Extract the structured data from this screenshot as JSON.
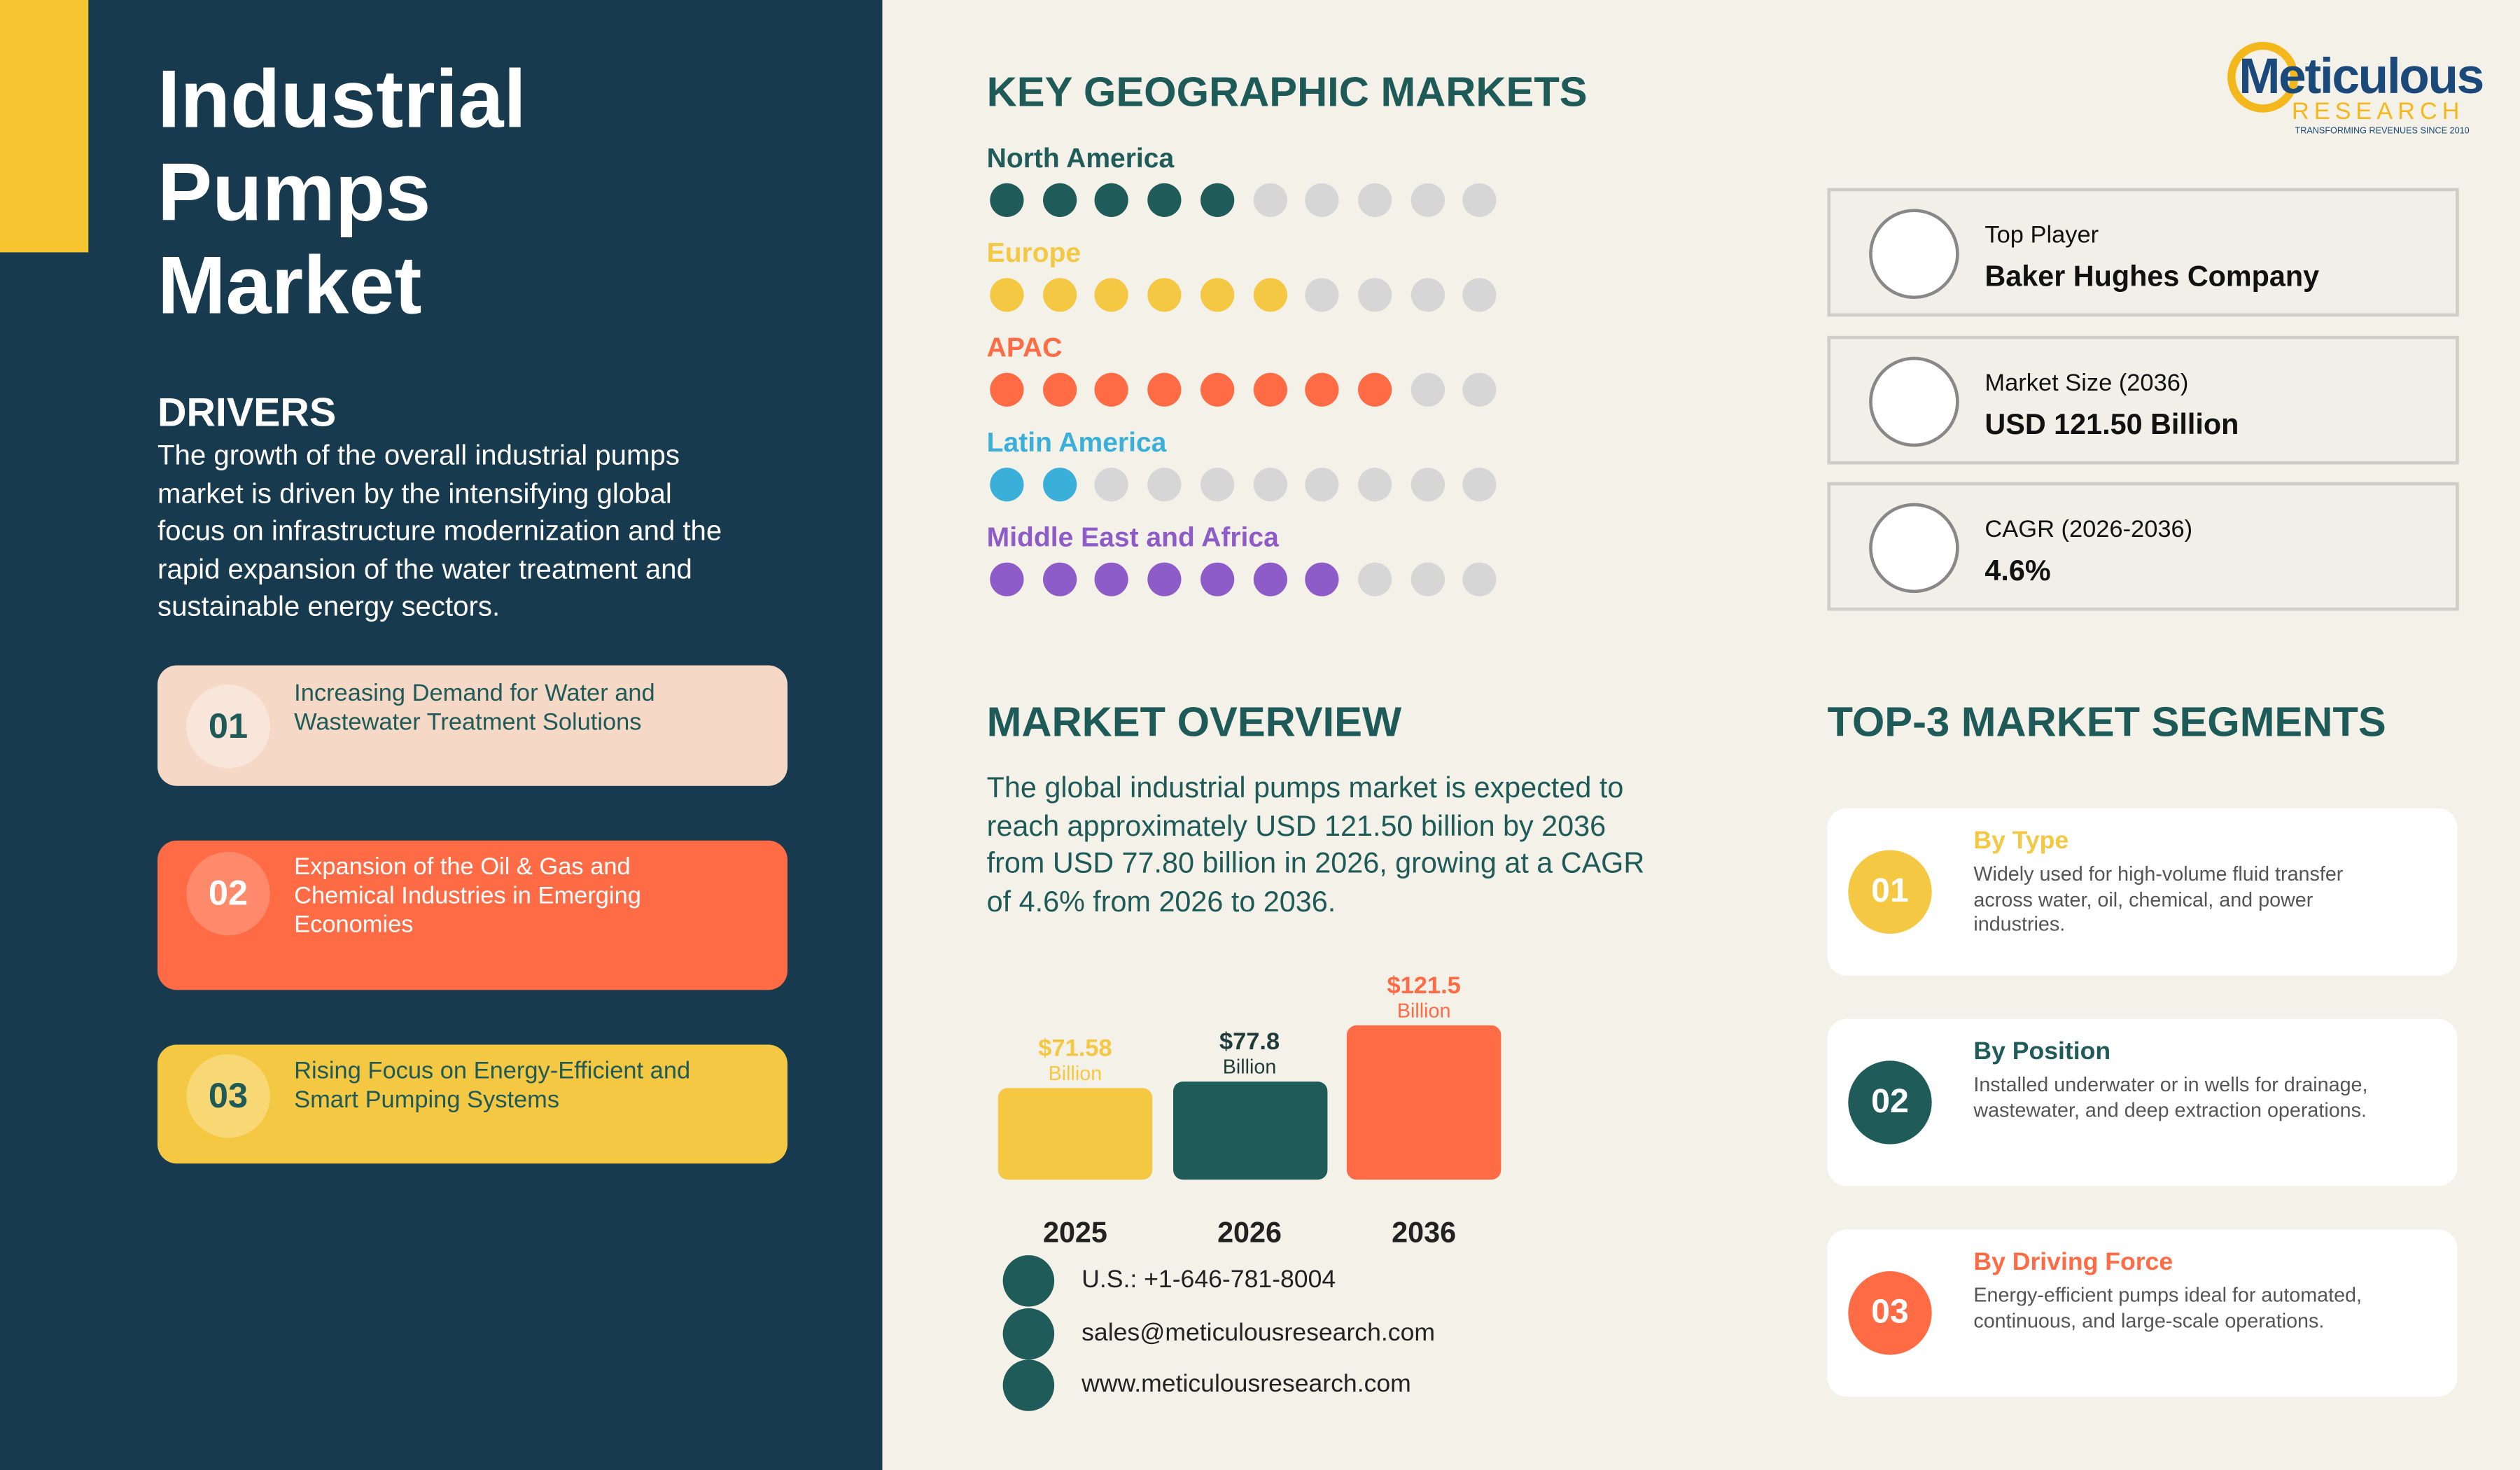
{
  "header": {
    "title": "Industrial Pumps Market"
  },
  "drivers": {
    "heading": "DRIVERS",
    "text": "The growth of the overall industrial pumps market is driven by the intensifying global focus on infrastructure modernization and the rapid expansion of the water treatment and sustainable energy sectors.",
    "items": [
      {
        "number": "01",
        "text": "Increasing Demand for Water and Wastewater Treatment Solutions"
      },
      {
        "number": "02",
        "text": "Expansion of the Oil & Gas and Chemical Industries in Emerging Economies"
      },
      {
        "number": "03",
        "text": "Rising Focus on Energy-Efficient and Smart Pumping Systems"
      }
    ]
  },
  "geographic_markets": {
    "heading": "KEY GEOGRAPHIC MARKETS",
    "dots_total": 10,
    "regions": [
      {
        "name": "North America",
        "color": "#1f5b58",
        "filled": 5
      },
      {
        "name": "Europe",
        "color": "#f4c842",
        "filled": 6
      },
      {
        "name": "APAC",
        "color": "#ff6b45",
        "filled": 8
      },
      {
        "name": "Latin America",
        "color": "#3aafda",
        "filled": 2
      },
      {
        "name": "Middle East and Africa",
        "color": "#8e5cc8",
        "filled": 7
      }
    ]
  },
  "market_overview": {
    "heading": "MARKET OVERVIEW",
    "text": "The global industrial pumps market is expected to reach approximately USD 121.50 billion by 2036 from USD 77.80 billion in 2026, growing at a CAGR of 4.6% from 2026 to 2036."
  },
  "chart_data": {
    "type": "bar",
    "categories": [
      "2025",
      "2026",
      "2036"
    ],
    "values": [
      71.58,
      77.8,
      121.5
    ],
    "value_labels": [
      "$71.58",
      "$77.8",
      "$121.5"
    ],
    "unit_label": "Billion",
    "colors": [
      "#f4c842",
      "#1f5b58",
      "#ff6b45"
    ]
  },
  "contacts": [
    "U.S.: +1-646-781-8004",
    "sales@meticulousresearch.com",
    "www.meticulousresearch.com"
  ],
  "logo": {
    "name": "Meticulous",
    "sub": "RESEARCH",
    "tagline": "TRANSFORMING REVENUES SINCE 2010"
  },
  "stats": [
    {
      "label": "Top Player",
      "value": "Baker Hughes Company"
    },
    {
      "label": "Market Size (2036)",
      "value": "USD 121.50 Billion"
    },
    {
      "label": "CAGR (2026-2036)",
      "value": "4.6%"
    }
  ],
  "segments": {
    "heading": "TOP-3 MARKET SEGMENTS",
    "items": [
      {
        "number": "01",
        "title": "By Type",
        "text": "Widely used for high-volume fluid transfer across water, oil, chemical, and power industries.",
        "color": "#f4c842"
      },
      {
        "number": "02",
        "title": "By Position",
        "text": "Installed underwater or in wells for drainage, wastewater, and deep extraction operations.",
        "color": "#1f5b58"
      },
      {
        "number": "03",
        "title": "By Driving Force",
        "text": "Energy-efficient pumps ideal for automated, continuous, and large-scale operations.",
        "color": "#ff6b45"
      }
    ]
  }
}
